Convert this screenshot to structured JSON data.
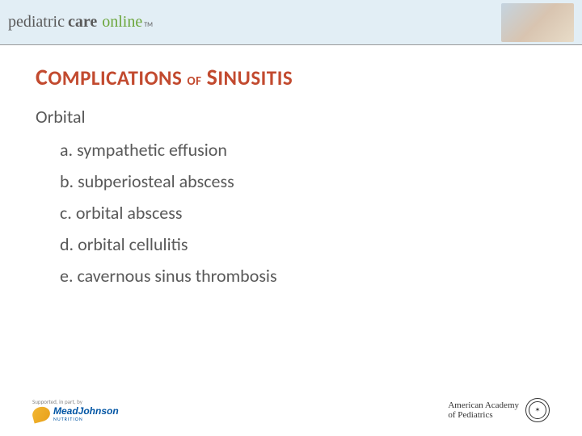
{
  "header": {
    "logo_word1": "pediatric",
    "logo_word2": "care",
    "logo_word3": "online",
    "tm": "TM"
  },
  "slide": {
    "title_html": "COMPLICATIONS OF SINUSITIS",
    "subhead": "Orbital",
    "items": [
      "a. sympathetic effusion",
      "b. subperiosteal abscess",
      "c. orbital abscess",
      "d. orbital cellulitis",
      "e. cavernous sinus thrombosis"
    ]
  },
  "footer": {
    "sponsor_tag": "Supported, in part, by",
    "mj_line1": "MeadJohnson",
    "mj_line2": "NUTRITION",
    "aap_line1": "American Academy",
    "aap_line2": "of Pediatrics"
  },
  "colors": {
    "header_bg": "#e2eef5",
    "title_color": "#c24a2f",
    "body_text": "#595959",
    "logo_gray": "#5a5a5a",
    "logo_green": "#6aa539",
    "mj_blue": "#0055a4",
    "mj_yellow": "#f2b733"
  },
  "typography": {
    "title_fontsize_pt": 20,
    "body_fontsize_pt": 17,
    "logo_fontsize_pt": 15
  }
}
